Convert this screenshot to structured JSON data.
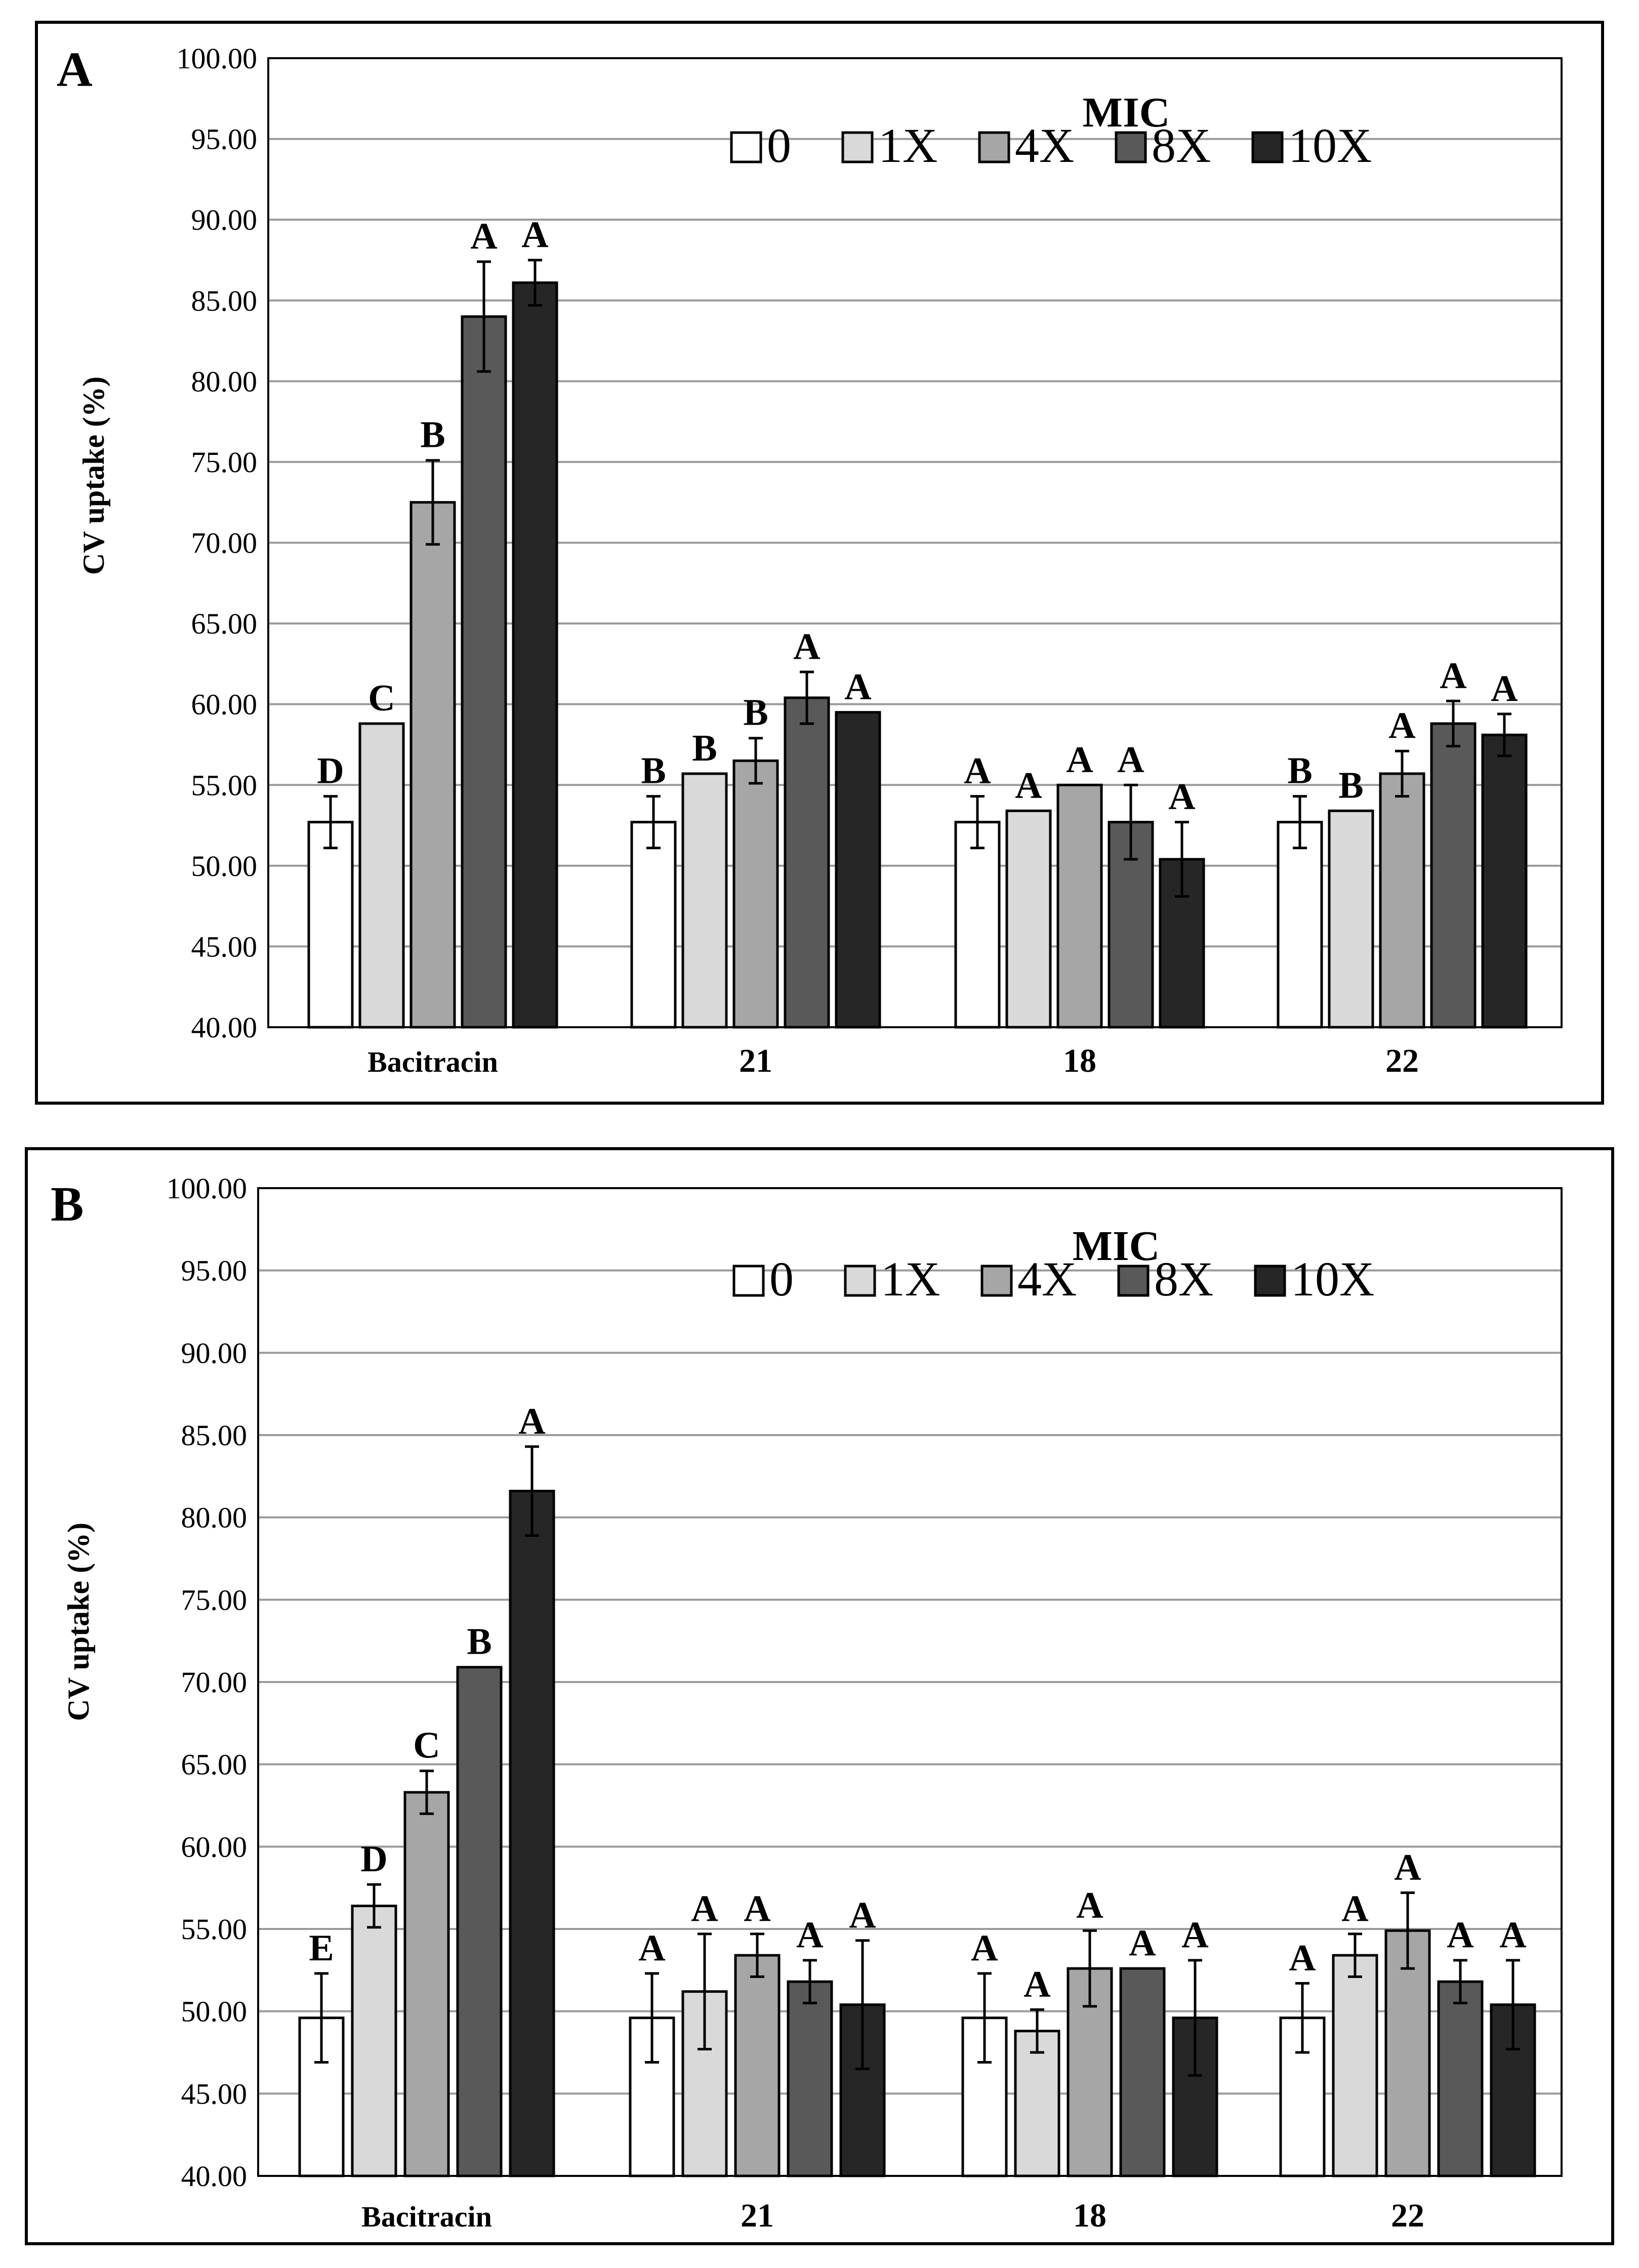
{
  "colors": {
    "series": [
      "#ffffff",
      "#d9d9d9",
      "#a6a6a6",
      "#595959",
      "#262626"
    ],
    "grid": "#9a9a9a",
    "frame": "#000000"
  },
  "chart_data": [
    {
      "type": "bar",
      "panel_label": "A",
      "ylabel": "CV uptake (%)",
      "ylim": [
        40,
        100
      ],
      "yticks": [
        "40.00",
        "45.00",
        "50.00",
        "55.00",
        "60.00",
        "65.00",
        "70.00",
        "75.00",
        "80.00",
        "85.00",
        "90.00",
        "95.00",
        "100.00"
      ],
      "legend_title": "MIC",
      "categories": [
        "Bacitracin",
        "21",
        "18",
        "22"
      ],
      "series": [
        {
          "name": "0",
          "values": [
            52.7,
            52.7,
            52.7,
            52.7
          ],
          "errors": [
            1.6,
            1.6,
            1.6,
            1.6
          ],
          "letters": [
            "D",
            "B",
            "A",
            "B"
          ]
        },
        {
          "name": "1X",
          "values": [
            58.8,
            55.7,
            53.4,
            53.4
          ],
          "errors": [
            0,
            0,
            0,
            0
          ],
          "letters": [
            "C",
            "B",
            "A",
            "B"
          ]
        },
        {
          "name": "4X",
          "values": [
            72.5,
            56.5,
            55.0,
            55.7
          ],
          "errors": [
            2.6,
            1.4,
            0,
            1.4
          ],
          "letters": [
            "B",
            "B",
            "A",
            "A"
          ]
        },
        {
          "name": "8X",
          "values": [
            84.0,
            60.4,
            52.7,
            58.8
          ],
          "errors": [
            3.4,
            1.6,
            2.3,
            1.4
          ],
          "letters": [
            "A",
            "A",
            "A",
            "A"
          ]
        },
        {
          "name": "10X",
          "values": [
            86.1,
            59.5,
            50.4,
            58.1
          ],
          "errors": [
            1.4,
            0,
            2.3,
            1.3
          ],
          "letters": [
            "A",
            "A",
            "A",
            "A"
          ]
        }
      ]
    },
    {
      "type": "bar",
      "panel_label": "B",
      "ylabel": "CV uptake (%)",
      "ylim": [
        40,
        100
      ],
      "yticks": [
        "40.00",
        "45.00",
        "50.00",
        "55.00",
        "60.00",
        "65.00",
        "70.00",
        "75.00",
        "80.00",
        "85.00",
        "90.00",
        "95.00",
        "100.00"
      ],
      "legend_title": "MIC",
      "categories": [
        "Bacitracin",
        "21",
        "18",
        "22"
      ],
      "series": [
        {
          "name": "0",
          "values": [
            49.6,
            49.6,
            49.6,
            49.6
          ],
          "errors": [
            2.7,
            2.7,
            2.7,
            2.1
          ],
          "letters": [
            "E",
            "A",
            "A",
            "A"
          ]
        },
        {
          "name": "1X",
          "values": [
            56.4,
            51.2,
            48.8,
            53.4
          ],
          "errors": [
            1.3,
            3.5,
            1.3,
            1.3
          ],
          "letters": [
            "D",
            "A",
            "A",
            "A"
          ]
        },
        {
          "name": "4X",
          "values": [
            63.3,
            53.4,
            52.6,
            54.9
          ],
          "errors": [
            1.3,
            1.3,
            2.3,
            2.3
          ],
          "letters": [
            "C",
            "A",
            "A",
            "A"
          ]
        },
        {
          "name": "8X",
          "values": [
            70.9,
            51.8,
            52.6,
            51.8
          ],
          "errors": [
            0,
            1.3,
            0,
            1.3
          ],
          "letters": [
            "B",
            "A",
            "A",
            "A"
          ]
        },
        {
          "name": "10X",
          "values": [
            81.6,
            50.4,
            49.6,
            50.4
          ],
          "errors": [
            2.7,
            3.9,
            3.5,
            2.7
          ],
          "letters": [
            "A",
            "A",
            "A",
            "A"
          ]
        }
      ]
    }
  ]
}
